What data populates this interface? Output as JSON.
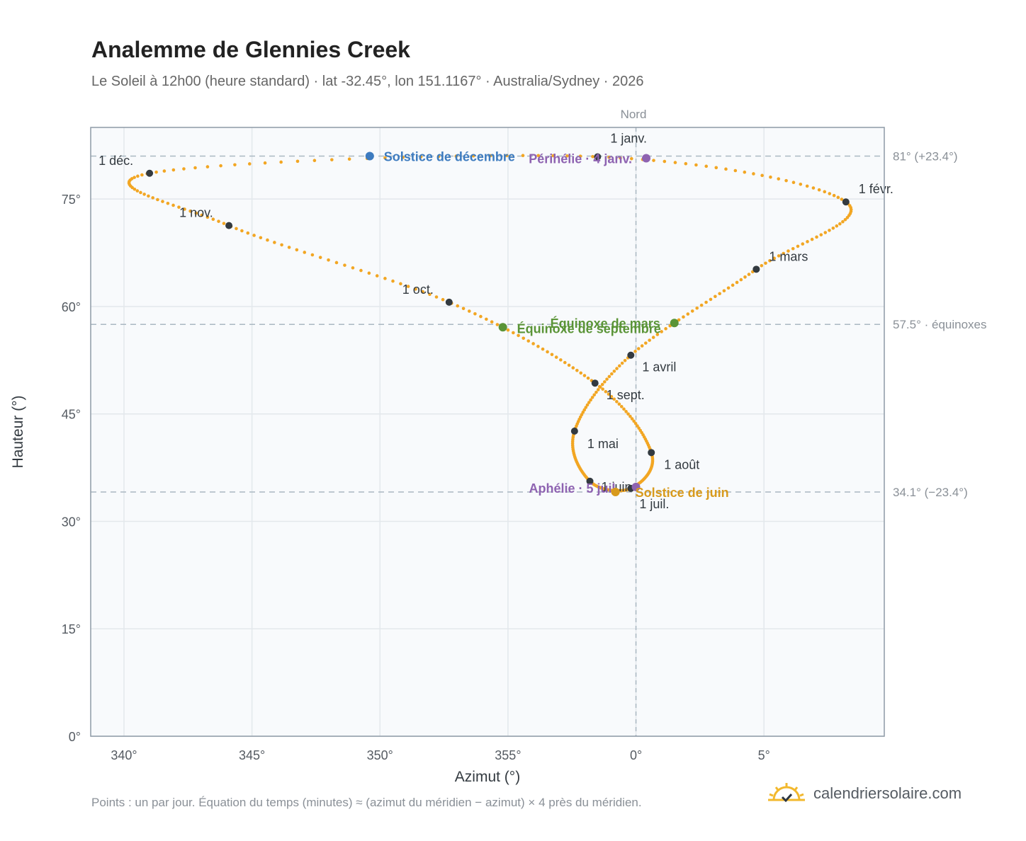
{
  "header": {
    "title": "Analemme de Glennies Creek",
    "subtitle": "Le Soleil à 12h00 (heure standard) · lat -32.45°, lon 151.1167° · Australia/Sydney · 2026"
  },
  "footer": {
    "note": "Points : un par jour. Équation du temps (minutes) ≈ (azimut du méridien − azimut) × 4 près du méridien.",
    "brand": "calendriersolaire.com",
    "brand_icon": "sun-logo-icon"
  },
  "colors": {
    "curve": "#f2a623",
    "monthDot": "#333a40",
    "december": "#3d7bbf",
    "june": "#d89a1c",
    "equinox": "#5a9437",
    "apsis": "#8e63b1",
    "refLine": "#aab8c2",
    "grid": "#e3e8ec",
    "plotBg": "#f8fafc"
  },
  "chart_data": {
    "type": "scatter",
    "xlabel": "Azimut (°)",
    "ylabel": "Hauteur (°)",
    "xlim": [
      338.7,
      9.7
    ],
    "ylim": [
      0,
      85
    ],
    "xticks": [
      340,
      345,
      350,
      355,
      0,
      5
    ],
    "xtick_labels": [
      "340°",
      "345°",
      "350°",
      "355°",
      "0°",
      "5°"
    ],
    "yticks": [
      0,
      15,
      30,
      45,
      60,
      75
    ],
    "ytick_labels": [
      "0°",
      "15°",
      "30°",
      "45°",
      "60°",
      "75°"
    ],
    "grid": true,
    "north_line": {
      "azimuth": 0,
      "label": "Nord"
    },
    "reference_lines": [
      {
        "altitude": 81,
        "label": "81° (+23.4°)"
      },
      {
        "altitude": 57.5,
        "label": "57.5° · équinoxes"
      },
      {
        "altitude": 34.1,
        "label": "34.1° (−23.4°)"
      }
    ],
    "month_markers": [
      {
        "label": "1 janv.",
        "az": 358.5,
        "alt": 80.9
      },
      {
        "label": "1 févr.",
        "az": 8.2,
        "alt": 74.6
      },
      {
        "label": "1 mars",
        "az": 4.7,
        "alt": 65.2
      },
      {
        "label": "1 avril",
        "az": 359.8,
        "alt": 53.2
      },
      {
        "label": "1 mai",
        "az": 357.6,
        "alt": 42.6
      },
      {
        "label": "1 juin",
        "az": 358.2,
        "alt": 35.6
      },
      {
        "label": "1 juil.",
        "az": 359.8,
        "alt": 34.6
      },
      {
        "label": "1 août",
        "az": 0.6,
        "alt": 39.6
      },
      {
        "label": "1 sept.",
        "az": 358.4,
        "alt": 49.3
      },
      {
        "label": "1 oct.",
        "az": 352.7,
        "alt": 60.6
      },
      {
        "label": "1 nov.",
        "az": 344.1,
        "alt": 71.3
      },
      {
        "label": "1 déc.",
        "az": 341.0,
        "alt": 78.6
      }
    ],
    "events": [
      {
        "label": "Solstice de décembre",
        "az": 349.6,
        "alt": 81.0,
        "kind": "december"
      },
      {
        "label": "Périhélie · 4 janv.",
        "az": 0.4,
        "alt": 80.7,
        "kind": "apsis"
      },
      {
        "label": "Équinoxe de mars",
        "az": 1.5,
        "alt": 57.7,
        "kind": "equinox"
      },
      {
        "label": "Équinoxe de septembre",
        "az": 354.8,
        "alt": 57.1,
        "kind": "equinox"
      },
      {
        "label": "Aphélie · 5 juil.",
        "az": 0.0,
        "alt": 34.8,
        "kind": "apsis"
      },
      {
        "label": "Solstice de juin",
        "az": 359.2,
        "alt": 34.1,
        "kind": "june"
      }
    ],
    "daily_points_per_year": 365
  }
}
